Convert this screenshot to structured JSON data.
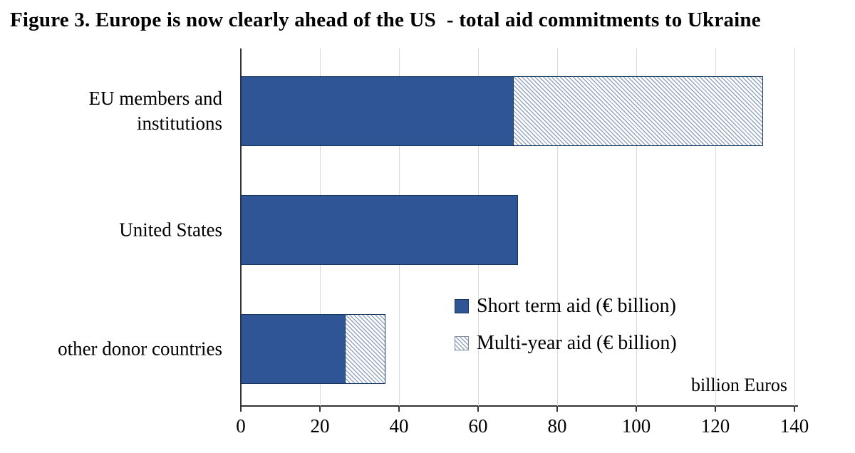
{
  "title": "Figure 3. Europe is now clearly ahead of the US  - total aid commitments to Ukraine",
  "chart_data": {
    "type": "bar",
    "orientation": "horizontal",
    "stacked": true,
    "title": "Figure 3. Europe is now clearly ahead of the US - total aid commitments to Ukraine",
    "categories": [
      "EU members and institutions",
      "United States",
      "other donor countries"
    ],
    "series": [
      {
        "name": "Short term aid (€ billion)",
        "style": "solid",
        "values": [
          69,
          70,
          26.5
        ]
      },
      {
        "name": "Multi-year aid (€ billion)",
        "style": "hatched",
        "values": [
          63,
          0,
          10
        ]
      }
    ],
    "totals": [
      132,
      70,
      36.5
    ],
    "xlabel": "billion Euros",
    "xlim": [
      0,
      140
    ],
    "xticks": [
      0,
      20,
      40,
      60,
      80,
      100,
      120,
      140
    ],
    "grid": "vertical",
    "legend_position": "inside-bottom-right",
    "colors": {
      "short_term_fill": "#2F5597",
      "bar_border": "#17375E",
      "hatch_stripe": "#94A5BF",
      "hatch_background": "#FFFFFF",
      "gridline": "#D9D9D9",
      "axis": "#333333",
      "text": "#000000"
    }
  }
}
